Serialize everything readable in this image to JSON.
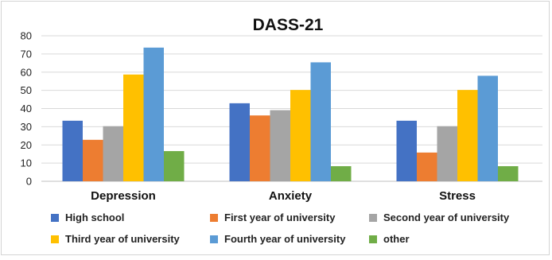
{
  "chart_data": {
    "type": "bar",
    "title": "DASS-21",
    "xlabel": "",
    "ylabel": "",
    "categories": [
      "Depression",
      "Anxiety",
      "Stress"
    ],
    "ylim": [
      0,
      80
    ],
    "yticks": [
      0,
      10,
      20,
      30,
      40,
      50,
      60,
      70,
      80
    ],
    "grid": true,
    "legend_position": "bottom",
    "series": [
      {
        "name": "High school",
        "color": "#4472c4",
        "values": [
          33.3,
          42.9,
          33.3
        ]
      },
      {
        "name": "First year of university",
        "color": "#ed7d31",
        "values": [
          22.8,
          36.2,
          15.8
        ]
      },
      {
        "name": "Second year of university",
        "color": "#a5a5a5",
        "values": [
          30.3,
          39.1,
          30.3
        ]
      },
      {
        "name": "Third year of university",
        "color": "#ffc000",
        "values": [
          58.7,
          50.2,
          50.2
        ]
      },
      {
        "name": "Fourth year of university",
        "color": "#5b9bd5",
        "values": [
          73.5,
          65.4,
          58.0
        ]
      },
      {
        "name": "other",
        "color": "#70ad47",
        "values": [
          16.6,
          8.3,
          8.3
        ]
      }
    ]
  }
}
